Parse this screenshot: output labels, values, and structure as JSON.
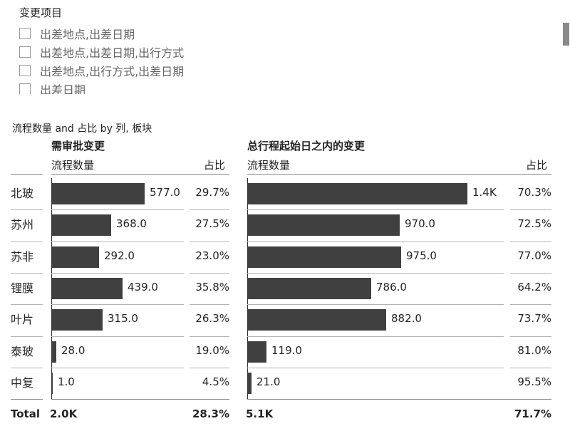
{
  "slicer": {
    "title": "变更项目",
    "items": [
      "出差地点,出差日期",
      "出差地点,出差日期,出行方式",
      "出差地点,出行方式,出差日期",
      "出差日期"
    ]
  },
  "chart_data": {
    "type": "bar",
    "title": "流程数量 and 占比 by 列, 板块",
    "categories": [
      "北玻",
      "苏州",
      "苏非",
      "锂膜",
      "叶片",
      "泰玻",
      "中复"
    ],
    "panels": [
      {
        "name": "需审批变更",
        "value_header": "流程数量",
        "pct_header": "占比",
        "values": [
          577,
          368,
          292,
          439,
          315,
          28,
          1
        ],
        "value_labels": [
          "577.0",
          "368.0",
          "292.0",
          "439.0",
          "315.0",
          "28.0",
          "1.0"
        ],
        "pct_labels": [
          "29.7%",
          "27.5%",
          "23.0%",
          "35.8%",
          "26.3%",
          "19.0%",
          "4.5%"
        ],
        "total_value": "2.0K",
        "total_pct": "28.3%"
      },
      {
        "name": "总行程起始日之内的变更",
        "value_header": "流程数量",
        "pct_header": "占比",
        "values": [
          1400,
          970,
          975,
          786,
          882,
          119,
          21
        ],
        "value_labels": [
          "1.4K",
          "970.0",
          "975.0",
          "786.0",
          "882.0",
          "119.0",
          "21.0"
        ],
        "pct_labels": [
          "70.3%",
          "72.5%",
          "77.0%",
          "64.2%",
          "73.7%",
          "81.0%",
          "95.5%"
        ],
        "total_value": "5.1K",
        "total_pct": "71.7%"
      }
    ],
    "total_label": "Total"
  }
}
